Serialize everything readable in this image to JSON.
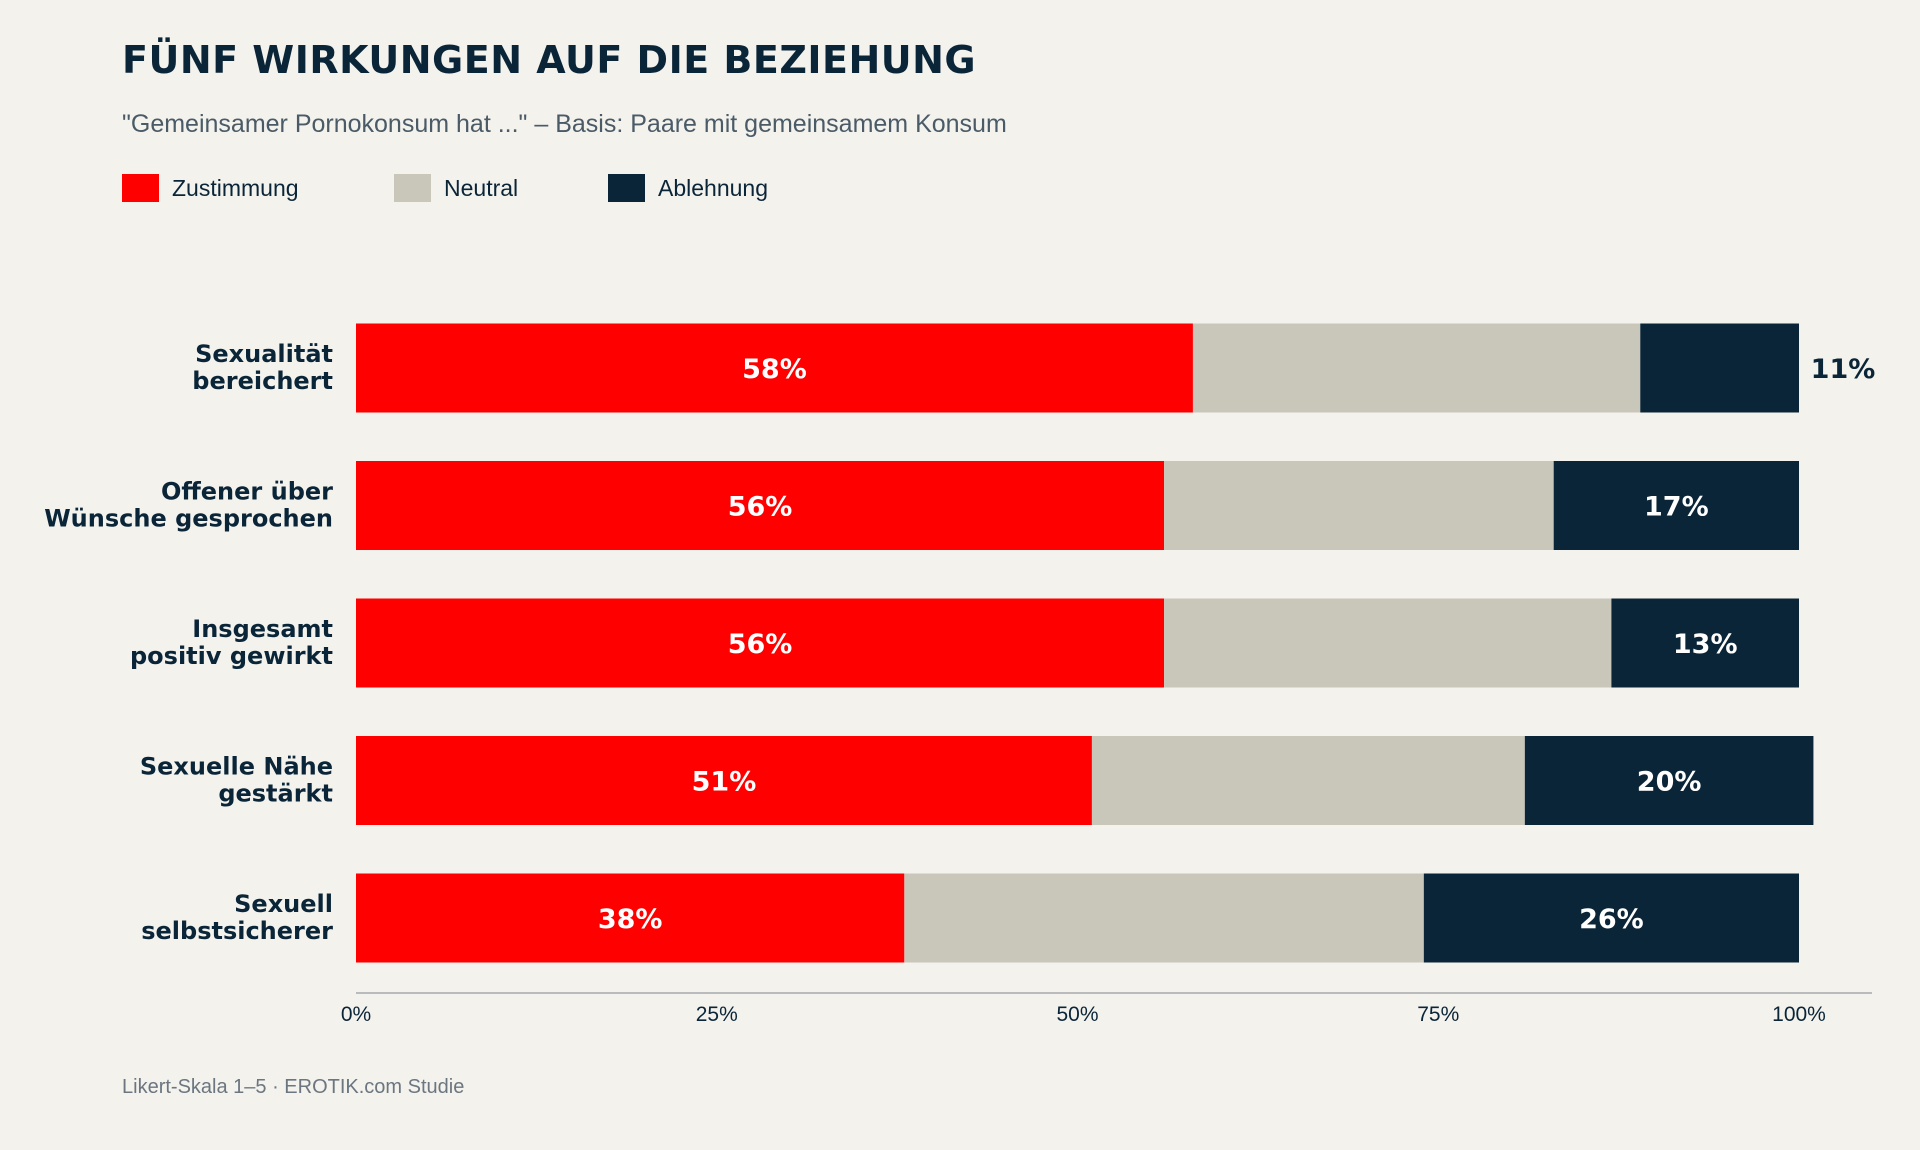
{
  "colors": {
    "background": "#f3f2ed",
    "zustimmung": "#ff0000",
    "neutral": "#c9c6ba",
    "ablehnung": "#0b2538",
    "text_dark": "#0b2538",
    "text_muted": "#4a5a66",
    "axis": "#b9bbbd"
  },
  "chart_data": {
    "type": "bar",
    "orientation": "horizontal",
    "stacked": true,
    "title": "FÜNF WIRKUNGEN AUF DIE BEZIEHUNG",
    "subtitle": "\"Gemeinsamer Pornokonsum hat ...\" – Basis: Paare mit gemeinsamem Konsum",
    "legend_position": "top-left",
    "grid": false,
    "xlim": [
      0,
      100
    ],
    "x_ticks": [
      "0%",
      "25%",
      "50%",
      "75%",
      "100%"
    ],
    "x_tick_values": [
      0,
      25,
      50,
      75,
      100
    ],
    "categories": [
      [
        "Sexualität",
        "bereichert"
      ],
      [
        "Offener über",
        "Wünsche gesprochen"
      ],
      [
        "Insgesamt",
        "positiv gewirkt"
      ],
      [
        "Sexuelle Nähe",
        "gestärkt"
      ],
      [
        "Sexuell",
        "selbstsicherer"
      ]
    ],
    "series": [
      {
        "name": "Zustimmung",
        "values": [
          58,
          56,
          56,
          51,
          38
        ],
        "labels": [
          "58%",
          "56%",
          "56%",
          "51%",
          "38%"
        ]
      },
      {
        "name": "Neutral",
        "values": [
          31,
          27,
          31,
          30,
          36
        ]
      },
      {
        "name": "Ablehnung",
        "values": [
          11,
          17,
          13,
          20,
          26
        ],
        "labels": [
          "11%",
          "17%",
          "13%",
          "20%",
          "26%"
        ]
      }
    ],
    "footer": "Likert-Skala 1–5  ·  EROTIK.com Studie"
  }
}
